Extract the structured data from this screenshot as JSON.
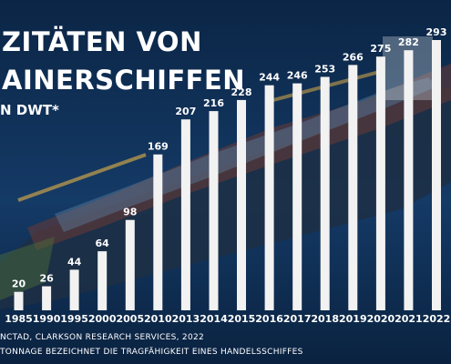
{
  "title_line1": "ZITÄTEN VON",
  "title_line2": "AINERSCHIFFEN",
  "unit_label": "N DWT*",
  "source_text": "NCTAD, CLARKSON RESEARCH SERVICES, 2022",
  "footnote_text": "TONNAGE BEZEICHNET DIE TRAGFÄHIGKEIT EINES HANDELSSCHIFFES",
  "colors": {
    "bar": "#f2f2f2",
    "label": "#ffffff",
    "sea_dark": "#0c2440",
    "sea_light": "#1e4d80"
  },
  "chart_data": {
    "type": "bar",
    "categories": [
      "1985",
      "1990",
      "1995",
      "2000",
      "2005",
      "2010",
      "2013",
      "2014",
      "2015",
      "2016",
      "2017",
      "2018",
      "2019",
      "2020",
      "2021",
      "2022"
    ],
    "values": [
      20,
      26,
      44,
      64,
      98,
      169,
      207,
      216,
      228,
      244,
      246,
      253,
      266,
      275,
      282,
      293
    ],
    "title": "",
    "xlabel": "",
    "ylabel": "",
    "ylim": [
      0,
      300
    ],
    "grid": false,
    "legend": "none",
    "data_labels": true
  }
}
